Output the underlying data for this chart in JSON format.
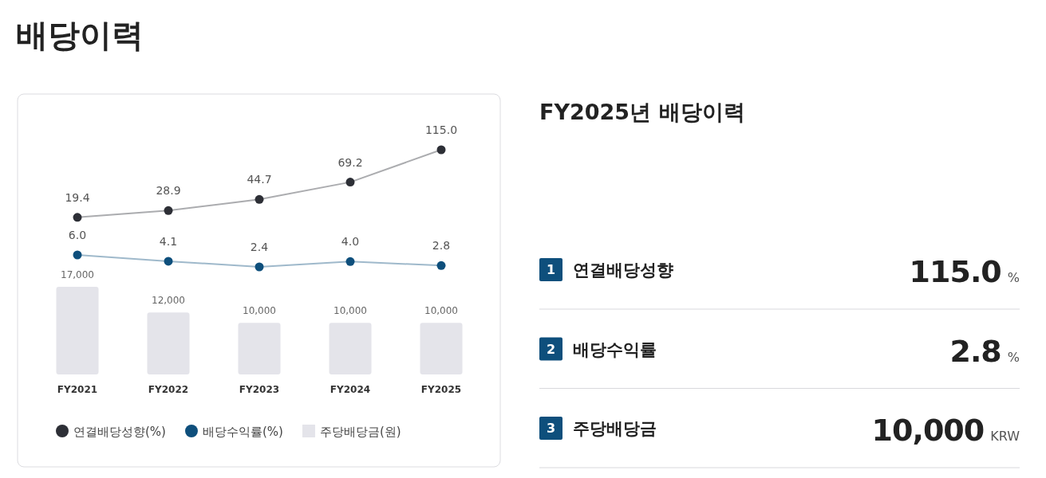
{
  "chart_data": [
    {
      "type": "line",
      "title": "배당이력",
      "categories": [
        null,
        null,
        null,
        null,
        null
      ],
      "series": [
        {
          "name": "연결배당성향(%)",
          "color": "#2d2f36",
          "values": [
            19.4,
            28.9,
            44.7,
            69.2,
            115.0
          ],
          "value_labels": [
            "19.4",
            "28.9",
            "44.7",
            "69.2",
            "115.0"
          ]
        }
      ],
      "marker": "circle",
      "legend": "bottom"
    },
    {
      "type": "line",
      "categories": [
        null,
        null,
        null,
        null,
        null
      ],
      "series": [
        {
          "name": "배당수익률(%)",
          "color": "#0e4f7c",
          "values": [
            6.0,
            4.1,
            2.4,
            4.0,
            2.8
          ],
          "value_labels": [
            "6.0",
            "4.1",
            "2.4",
            "4.0",
            "2.8"
          ]
        }
      ],
      "marker": "circle",
      "legend": "bottom"
    },
    {
      "type": "bar",
      "categories": [
        "FY2021",
        "FY2022",
        "FY2023",
        "FY2024",
        "FY2025"
      ],
      "series": [
        {
          "name": "주당배당금(원)",
          "color": "#e4e4ea",
          "values": [
            17000,
            12000,
            10000,
            10000,
            10000
          ],
          "value_labels": [
            "17,000",
            "12,000",
            "10,000",
            "10,000",
            "10,000"
          ]
        }
      ],
      "legend": "bottom"
    },
    {
      "type": "other",
      "title": "FY2025년 배당이력",
      "annotations": [
        "1",
        "연결배당성향",
        "115.0",
        "%",
        "2",
        "배당수익률",
        "2.8",
        "%",
        "3",
        "주당배당금",
        "10,000",
        "KRW"
      ]
    }
  ]
}
